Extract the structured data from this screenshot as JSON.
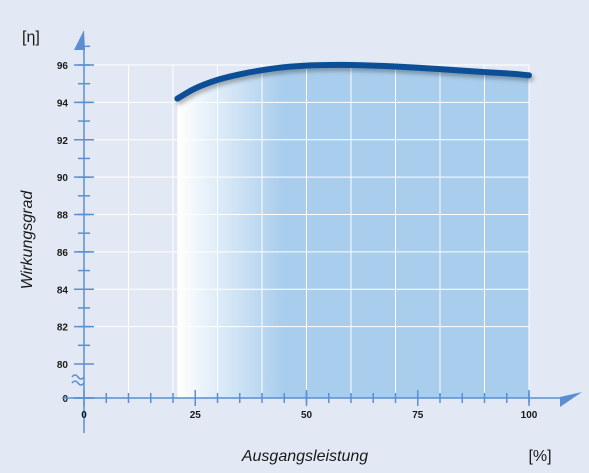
{
  "chart_data": {
    "type": "line",
    "ylabel": "Wirkungsgrad",
    "y_unit": "[η]",
    "xlabel": "Ausgangsleistung",
    "x_unit": "[%]",
    "x_ticks": [
      0,
      25,
      50,
      75,
      100
    ],
    "y_ticks": [
      0,
      80,
      82,
      84,
      86,
      88,
      90,
      92,
      94,
      96
    ],
    "y_axis_break": true,
    "grid": true,
    "xlim": [
      0,
      100
    ],
    "ylim": [
      80,
      97
    ],
    "series": [
      {
        "x": [
          21,
          25,
          30,
          35,
          40,
          45,
          50,
          55,
          60,
          65,
          70,
          75,
          80,
          85,
          90,
          95,
          100
        ],
        "y": [
          94.2,
          94.75,
          95.2,
          95.5,
          95.72,
          95.88,
          95.97,
          96.0,
          96.0,
          95.97,
          95.92,
          95.85,
          95.78,
          95.7,
          95.62,
          95.55,
          95.45
        ]
      }
    ],
    "colors": {
      "curve": "#0f4f96",
      "fill": "#a9cdec",
      "fill_fade": "#ffffff",
      "background": "#e3e9f4",
      "axis": "#5b8fd2"
    }
  }
}
